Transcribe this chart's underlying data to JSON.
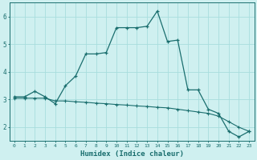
{
  "title": "",
  "xlabel": "Humidex (Indice chaleur)",
  "ylabel": "",
  "background_color": "#cff0f0",
  "grid_color": "#a8dede",
  "line_color": "#1a6e6e",
  "xlim": [
    -0.5,
    23.5
  ],
  "ylim": [
    1.5,
    6.5
  ],
  "yticks": [
    2,
    3,
    4,
    5,
    6
  ],
  "xticks": [
    0,
    1,
    2,
    3,
    4,
    5,
    6,
    7,
    8,
    9,
    10,
    11,
    12,
    13,
    14,
    15,
    16,
    17,
    18,
    19,
    20,
    21,
    22,
    23
  ],
  "series1_x": [
    0,
    1,
    2,
    3,
    4,
    5,
    6,
    7,
    8,
    9,
    10,
    11,
    12,
    13,
    14,
    15,
    16,
    17,
    18,
    19,
    20,
    21,
    22,
    23
  ],
  "series1_y": [
    3.1,
    3.1,
    3.3,
    3.1,
    2.85,
    3.5,
    3.85,
    4.65,
    4.65,
    4.7,
    5.6,
    5.6,
    5.6,
    5.65,
    6.2,
    5.1,
    5.15,
    3.35,
    3.35,
    2.65,
    2.5,
    1.85,
    1.65,
    1.85
  ],
  "series2_x": [
    0,
    1,
    2,
    3,
    4,
    5,
    6,
    7,
    8,
    9,
    10,
    11,
    12,
    13,
    14,
    15,
    16,
    17,
    18,
    19,
    20,
    21,
    22,
    23
  ],
  "series2_y": [
    3.05,
    3.05,
    3.05,
    3.05,
    2.95,
    2.95,
    2.92,
    2.9,
    2.87,
    2.85,
    2.82,
    2.8,
    2.77,
    2.75,
    2.72,
    2.7,
    2.65,
    2.6,
    2.55,
    2.5,
    2.4,
    2.2,
    2.0,
    1.85
  ]
}
